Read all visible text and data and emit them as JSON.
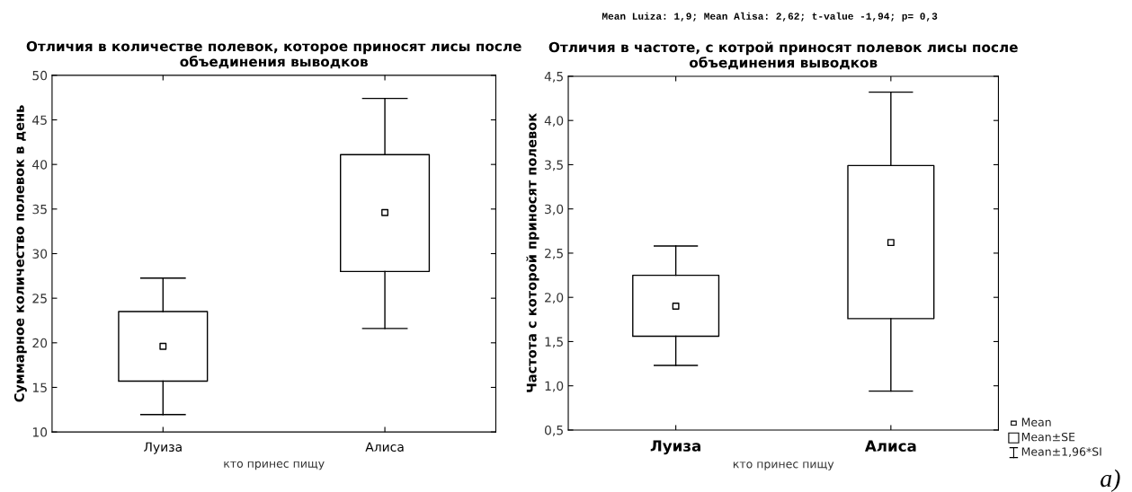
{
  "chart_data": [
    {
      "type": "box",
      "title": "Отличия в количестве полевок, которое приносят лисы после\nобъединения выводков",
      "xlabel": "кто принес пищу",
      "ylabel": "Суммарное количество полевок в день",
      "categories": [
        "Луиза",
        "Алиса"
      ],
      "boxes": [
        {
          "low": 11.95,
          "q1": 15.7,
          "median": 19.6,
          "q3": 23.5,
          "high": 27.25
        },
        {
          "low": 21.6,
          "q1": 28.0,
          "median": 34.6,
          "q3": 41.1,
          "high": 47.4
        }
      ],
      "ylim": [
        10,
        50
      ],
      "yticks": [
        10,
        15,
        20,
        25,
        30,
        35,
        40,
        45,
        50
      ],
      "grid": false
    },
    {
      "type": "box",
      "title": "Отличия в частоте, с котрой приносят полевок лисы после\nобъединения выводков",
      "xlabel": "кто принес пищу",
      "ylabel": "Частота с которой приносят полевок",
      "categories": [
        "Луиза",
        "Алиса"
      ],
      "boxes": [
        {
          "low": 1.23,
          "q1": 1.56,
          "median": 1.9,
          "q3": 2.25,
          "high": 2.58
        },
        {
          "low": 0.94,
          "q1": 1.76,
          "median": 2.62,
          "q3": 3.49,
          "high": 4.32
        }
      ],
      "ylim": [
        0.5,
        4.5
      ],
      "yticks": [
        {
          "value": 0.5,
          "label": "0,5"
        },
        {
          "value": 1.0,
          "label": "1,0"
        },
        {
          "value": 1.5,
          "label": "1,5"
        },
        {
          "value": 2.0,
          "label": "2,0"
        },
        {
          "value": 2.5,
          "label": "2,5"
        },
        {
          "value": 3.0,
          "label": "3,0"
        },
        {
          "value": 3.5,
          "label": "3,5"
        },
        {
          "value": 4.0,
          "label": "4,0"
        },
        {
          "value": 4.5,
          "label": "4,5"
        }
      ],
      "grid": false,
      "annotations": [
        "Mean",
        "Mean±SE",
        "Mean±1,96*SI",
        "Mean Luiza: 1,9; Mean Alisa: 2,62; t-value -1,94; p= 0,3",
        "a)"
      ]
    }
  ]
}
